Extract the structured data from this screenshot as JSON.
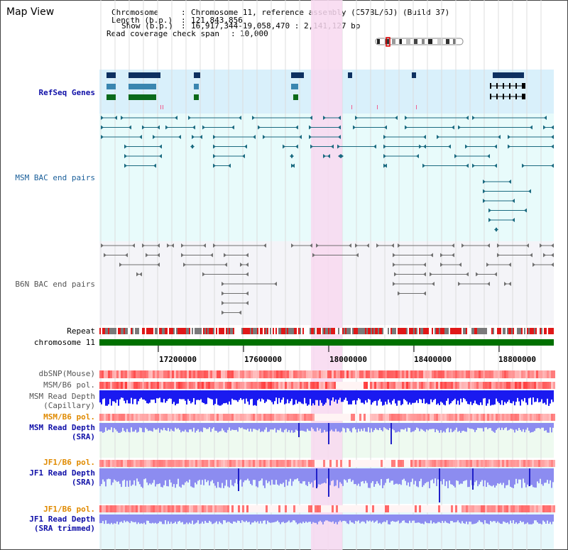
{
  "title": "Map View",
  "info": {
    "chromosome_key": "Chromosome",
    "chromosome_val": "Chromosome 11, reference assembly (C57BL/6J) (Build 37)",
    "length_key": "Length (b.p.)",
    "length_val": "121,843,856",
    "show_key": "Show (b.p.)",
    "show_val": "16,917,344-19,058,470 : 2,141,127 bp",
    "coverage_key": "Read coverage check span",
    "coverage_val": "10,000"
  },
  "tracks": {
    "refseq": "RefSeq Genes",
    "msm_bac": "MSM BAC end pairs",
    "b6n_bac": "B6N BAC end pairs",
    "repeat": "Repeat",
    "chromosome": "chromosome 11",
    "dbsnp": "dbSNP(Mouse)",
    "msm_b6_pol_1": "MSM/B6 pol.",
    "msm_depth_cap_1": "MSM Read Depth",
    "msm_depth_cap_2": "(Capillary)",
    "msm_b6_pol_2": "MSM/B6 pol.",
    "msm_depth_sra_1": "MSM Read Depth",
    "msm_depth_sra_2": "(SRA)",
    "jf1_b6_pol_1": "JF1/B6 pol.",
    "jf1_depth_sra_1": "JF1 Read Depth",
    "jf1_depth_sra_2": "(SRA)",
    "jf1_b6_pol_2": "JF1/B6 pol.",
    "jf1_depth_trim_1": "JF1 Read Depth",
    "jf1_depth_trim_2": "(SRA trimmed)"
  },
  "axis": {
    "ticks": [
      "17200000",
      "17600000",
      "18000000",
      "18400000",
      "18800000"
    ],
    "range": [
      16917344,
      19058470
    ]
  },
  "colors": {
    "refseq_bg": "#d9f0fb",
    "bac_bg": "#e8fbfb",
    "b6n_bg": "#f4f4f8",
    "highlight": "#f8d8f0",
    "chromosome_bar": "#007000",
    "depth_capillary": "#1a1af0",
    "depth_sra": "#8c8cf0",
    "pol": "#f04040",
    "label_blue": "#1010a8",
    "label_orange": "#e08a00"
  }
}
